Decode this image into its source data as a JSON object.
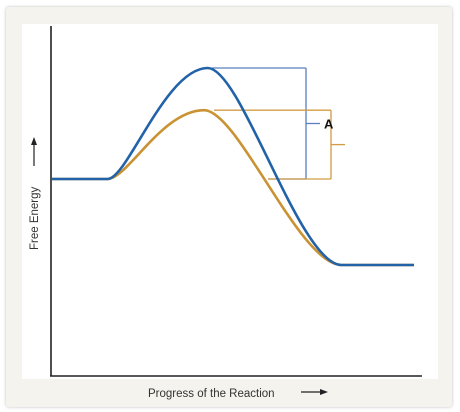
{
  "chart_data": {
    "type": "line",
    "title": "",
    "xlabel": "Progress of the Reaction",
    "ylabel": "Free Energy",
    "grid": false,
    "legend": "none",
    "series": [
      {
        "id": "uncatalyzed",
        "color": "#2162a8",
        "start": 1.0,
        "peak": 1.0,
        "end": 0.0,
        "peak_x": 0.43
      },
      {
        "id": "catalyzed",
        "color": "#c99233",
        "start": 1.0,
        "peak": 0.62,
        "end": 0.0,
        "peak_x": 0.42
      }
    ],
    "annotations": [
      {
        "label": "A",
        "series": "uncatalyzed",
        "color": "#5b80bd"
      },
      {
        "label": "",
        "series": "catalyzed",
        "color": "#d29c46"
      }
    ]
  }
}
